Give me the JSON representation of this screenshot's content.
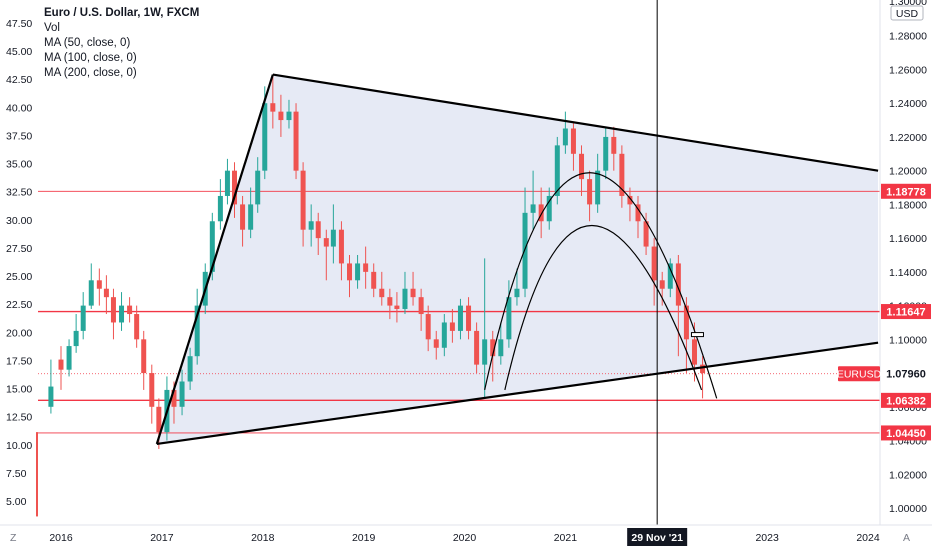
{
  "legend": {
    "title": "Euro / U.S. Dollar, 1W, FXCM",
    "vol": "Vol",
    "ma50": "MA (50, close, 0)",
    "ma100": "MA (100, close, 0)",
    "ma200": "MA (200, close, 0)"
  },
  "currency": "USD",
  "footer": {
    "timezone_icon": "Z",
    "auto_icon": "A"
  },
  "chart_data": {
    "type": "candlestick",
    "title": "Euro / U.S. Dollar, 1W, FXCM",
    "x_ticks": [
      "2016",
      "2017",
      "2018",
      "2019",
      "2020",
      "2021",
      "2022",
      "2023",
      "2024"
    ],
    "crosshair_label": "29 Nov '21",
    "crosshair_date": 2021.91,
    "price_axis": {
      "ticks": [
        "1.30000",
        "1.28000",
        "1.26000",
        "1.24000",
        "1.22000",
        "1.20000",
        "1.18000",
        "1.16000",
        "1.14000",
        "1.12000",
        "1.10000",
        "1.08000",
        "1.06000",
        "1.04000",
        "1.02000",
        "1.00000"
      ],
      "range": [
        0.99,
        1.3
      ]
    },
    "volume_axis": {
      "ticks": [
        "47.50",
        "45.00",
        "42.50",
        "40.00",
        "37.50",
        "35.00",
        "32.50",
        "30.00",
        "27.50",
        "25.00",
        "22.50",
        "20.00",
        "17.50",
        "15.00",
        "12.50",
        "10.00",
        "7.50",
        "5.00"
      ],
      "range": [
        0,
        50
      ]
    },
    "horizontal_levels": [
      {
        "label": "1.18778",
        "price": 1.18778
      },
      {
        "label": "1.11647",
        "price": 1.11647
      },
      {
        "label": "1.06382",
        "price": 1.06382
      },
      {
        "label": "1.04450",
        "price": 1.0445
      }
    ],
    "last_price": {
      "symbol": "EURUSD",
      "label": "1.07960",
      "price": 1.0796
    },
    "triangle": {
      "apex": {
        "date": 2018.1,
        "price": 1.257
      },
      "upper_end": {
        "date": 2024.1,
        "price": 1.2
      },
      "lower_start": {
        "date": 2016.95,
        "price": 1.038
      },
      "lower_end": {
        "date": 2024.1,
        "price": 1.098
      }
    },
    "candles": [
      [
        "2015.90",
        1.06,
        1.072,
        1.056,
        1.088
      ],
      [
        "2016.00",
        1.088,
        1.082,
        1.07,
        1.096
      ],
      [
        "2016.08",
        1.082,
        1.096,
        1.078,
        1.1
      ],
      [
        "2016.15",
        1.096,
        1.105,
        1.092,
        1.115
      ],
      [
        "2016.22",
        1.105,
        1.12,
        1.1,
        1.128
      ],
      [
        "2016.30",
        1.12,
        1.135,
        1.118,
        1.145
      ],
      [
        "2016.38",
        1.135,
        1.13,
        1.12,
        1.142
      ],
      [
        "2016.45",
        1.13,
        1.125,
        1.115,
        1.138
      ],
      [
        "2016.52",
        1.125,
        1.11,
        1.1,
        1.13
      ],
      [
        "2016.60",
        1.11,
        1.12,
        1.105,
        1.128
      ],
      [
        "2016.68",
        1.12,
        1.115,
        1.11,
        1.125
      ],
      [
        "2016.75",
        1.115,
        1.1,
        1.095,
        1.12
      ],
      [
        "2016.82",
        1.1,
        1.08,
        1.07,
        1.105
      ],
      [
        "2016.90",
        1.08,
        1.06,
        1.05,
        1.085
      ],
      [
        "2016.97",
        1.06,
        1.045,
        1.035,
        1.065
      ],
      [
        "2017.05",
        1.045,
        1.07,
        1.04,
        1.078
      ],
      [
        "2017.12",
        1.07,
        1.06,
        1.05,
        1.075
      ],
      [
        "2017.20",
        1.06,
        1.075,
        1.055,
        1.082
      ],
      [
        "2017.28",
        1.075,
        1.09,
        1.07,
        1.095
      ],
      [
        "2017.35",
        1.09,
        1.12,
        1.085,
        1.13
      ],
      [
        "2017.43",
        1.12,
        1.14,
        1.115,
        1.145
      ],
      [
        "2017.50",
        1.14,
        1.17,
        1.135,
        1.175
      ],
      [
        "2017.58",
        1.17,
        1.185,
        1.165,
        1.195
      ],
      [
        "2017.65",
        1.185,
        1.2,
        1.18,
        1.207
      ],
      [
        "2017.72",
        1.2,
        1.18,
        1.172,
        1.205
      ],
      [
        "2017.80",
        1.18,
        1.165,
        1.155,
        1.185
      ],
      [
        "2017.88",
        1.165,
        1.18,
        1.16,
        1.19
      ],
      [
        "2017.95",
        1.18,
        1.2,
        1.175,
        1.208
      ],
      [
        "2018.02",
        1.2,
        1.24,
        1.195,
        1.25
      ],
      [
        "2018.10",
        1.24,
        1.235,
        1.225,
        1.256
      ],
      [
        "2018.18",
        1.235,
        1.23,
        1.22,
        1.245
      ],
      [
        "2018.26",
        1.23,
        1.235,
        1.225,
        1.242
      ],
      [
        "2018.33",
        1.235,
        1.2,
        1.195,
        1.24
      ],
      [
        "2018.40",
        1.2,
        1.165,
        1.155,
        1.205
      ],
      [
        "2018.48",
        1.165,
        1.17,
        1.155,
        1.18
      ],
      [
        "2018.55",
        1.17,
        1.16,
        1.15,
        1.175
      ],
      [
        "2018.63",
        1.16,
        1.155,
        1.135,
        1.165
      ],
      [
        "2018.70",
        1.155,
        1.165,
        1.145,
        1.18
      ],
      [
        "2018.78",
        1.165,
        1.145,
        1.135,
        1.17
      ],
      [
        "2018.86",
        1.145,
        1.135,
        1.125,
        1.15
      ],
      [
        "2018.94",
        1.135,
        1.145,
        1.13,
        1.15
      ],
      [
        "2019.02",
        1.145,
        1.14,
        1.13,
        1.155
      ],
      [
        "2019.10",
        1.14,
        1.13,
        1.125,
        1.145
      ],
      [
        "2019.18",
        1.13,
        1.125,
        1.12,
        1.14
      ],
      [
        "2019.26",
        1.125,
        1.12,
        1.112,
        1.13
      ],
      [
        "2019.33",
        1.12,
        1.118,
        1.11,
        1.128
      ],
      [
        "2019.41",
        1.118,
        1.13,
        1.115,
        1.14
      ],
      [
        "2019.49",
        1.13,
        1.125,
        1.12,
        1.14
      ],
      [
        "2019.57",
        1.125,
        1.115,
        1.105,
        1.13
      ],
      [
        "2019.64",
        1.115,
        1.1,
        1.093,
        1.12
      ],
      [
        "2019.72",
        1.1,
        1.095,
        1.088,
        1.105
      ],
      [
        "2019.80",
        1.095,
        1.11,
        1.09,
        1.115
      ],
      [
        "2019.88",
        1.11,
        1.105,
        1.098,
        1.118
      ],
      [
        "2019.96",
        1.105,
        1.12,
        1.1,
        1.124
      ],
      [
        "2020.04",
        1.12,
        1.105,
        1.1,
        1.125
      ],
      [
        "2020.12",
        1.105,
        1.085,
        1.08,
        1.11
      ],
      [
        "2020.20",
        1.085,
        1.1,
        1.065,
        1.148
      ],
      [
        "2020.28",
        1.1,
        1.09,
        1.075,
        1.105
      ],
      [
        "2020.36",
        1.09,
        1.1,
        1.085,
        1.11
      ],
      [
        "2020.44",
        1.1,
        1.125,
        1.095,
        1.135
      ],
      [
        "2020.52",
        1.125,
        1.13,
        1.12,
        1.142
      ],
      [
        "2020.60",
        1.13,
        1.175,
        1.125,
        1.19
      ],
      [
        "2020.68",
        1.175,
        1.18,
        1.165,
        1.2
      ],
      [
        "2020.76",
        1.18,
        1.17,
        1.16,
        1.19
      ],
      [
        "2020.84",
        1.17,
        1.185,
        1.165,
        1.19
      ],
      [
        "2020.92",
        1.185,
        1.215,
        1.18,
        1.22
      ],
      [
        "2021.00",
        1.215,
        1.225,
        1.21,
        1.235
      ],
      [
        "2021.08",
        1.225,
        1.21,
        1.2,
        1.228
      ],
      [
        "2021.16",
        1.21,
        1.195,
        1.185,
        1.215
      ],
      [
        "2021.24",
        1.195,
        1.18,
        1.17,
        1.2
      ],
      [
        "2021.32",
        1.18,
        1.2,
        1.175,
        1.21
      ],
      [
        "2021.40",
        1.2,
        1.22,
        1.195,
        1.226
      ],
      [
        "2021.48",
        1.22,
        1.21,
        1.2,
        1.226
      ],
      [
        "2021.56",
        1.21,
        1.185,
        1.178,
        1.215
      ],
      [
        "2021.64",
        1.185,
        1.18,
        1.17,
        1.19
      ],
      [
        "2021.72",
        1.18,
        1.17,
        1.16,
        1.185
      ],
      [
        "2021.80",
        1.17,
        1.155,
        1.15,
        1.175
      ],
      [
        "2021.88",
        1.155,
        1.135,
        1.12,
        1.16
      ],
      [
        "2021.96",
        1.135,
        1.13,
        1.12,
        1.14
      ],
      [
        "2022.04",
        1.13,
        1.145,
        1.125,
        1.148
      ],
      [
        "2022.12",
        1.145,
        1.12,
        1.09,
        1.15
      ],
      [
        "2022.20",
        1.12,
        1.1,
        1.08,
        1.125
      ],
      [
        "2022.28",
        1.1,
        1.085,
        1.075,
        1.11
      ],
      [
        "2022.36",
        1.085,
        1.08,
        1.065,
        1.09
      ]
    ]
  }
}
